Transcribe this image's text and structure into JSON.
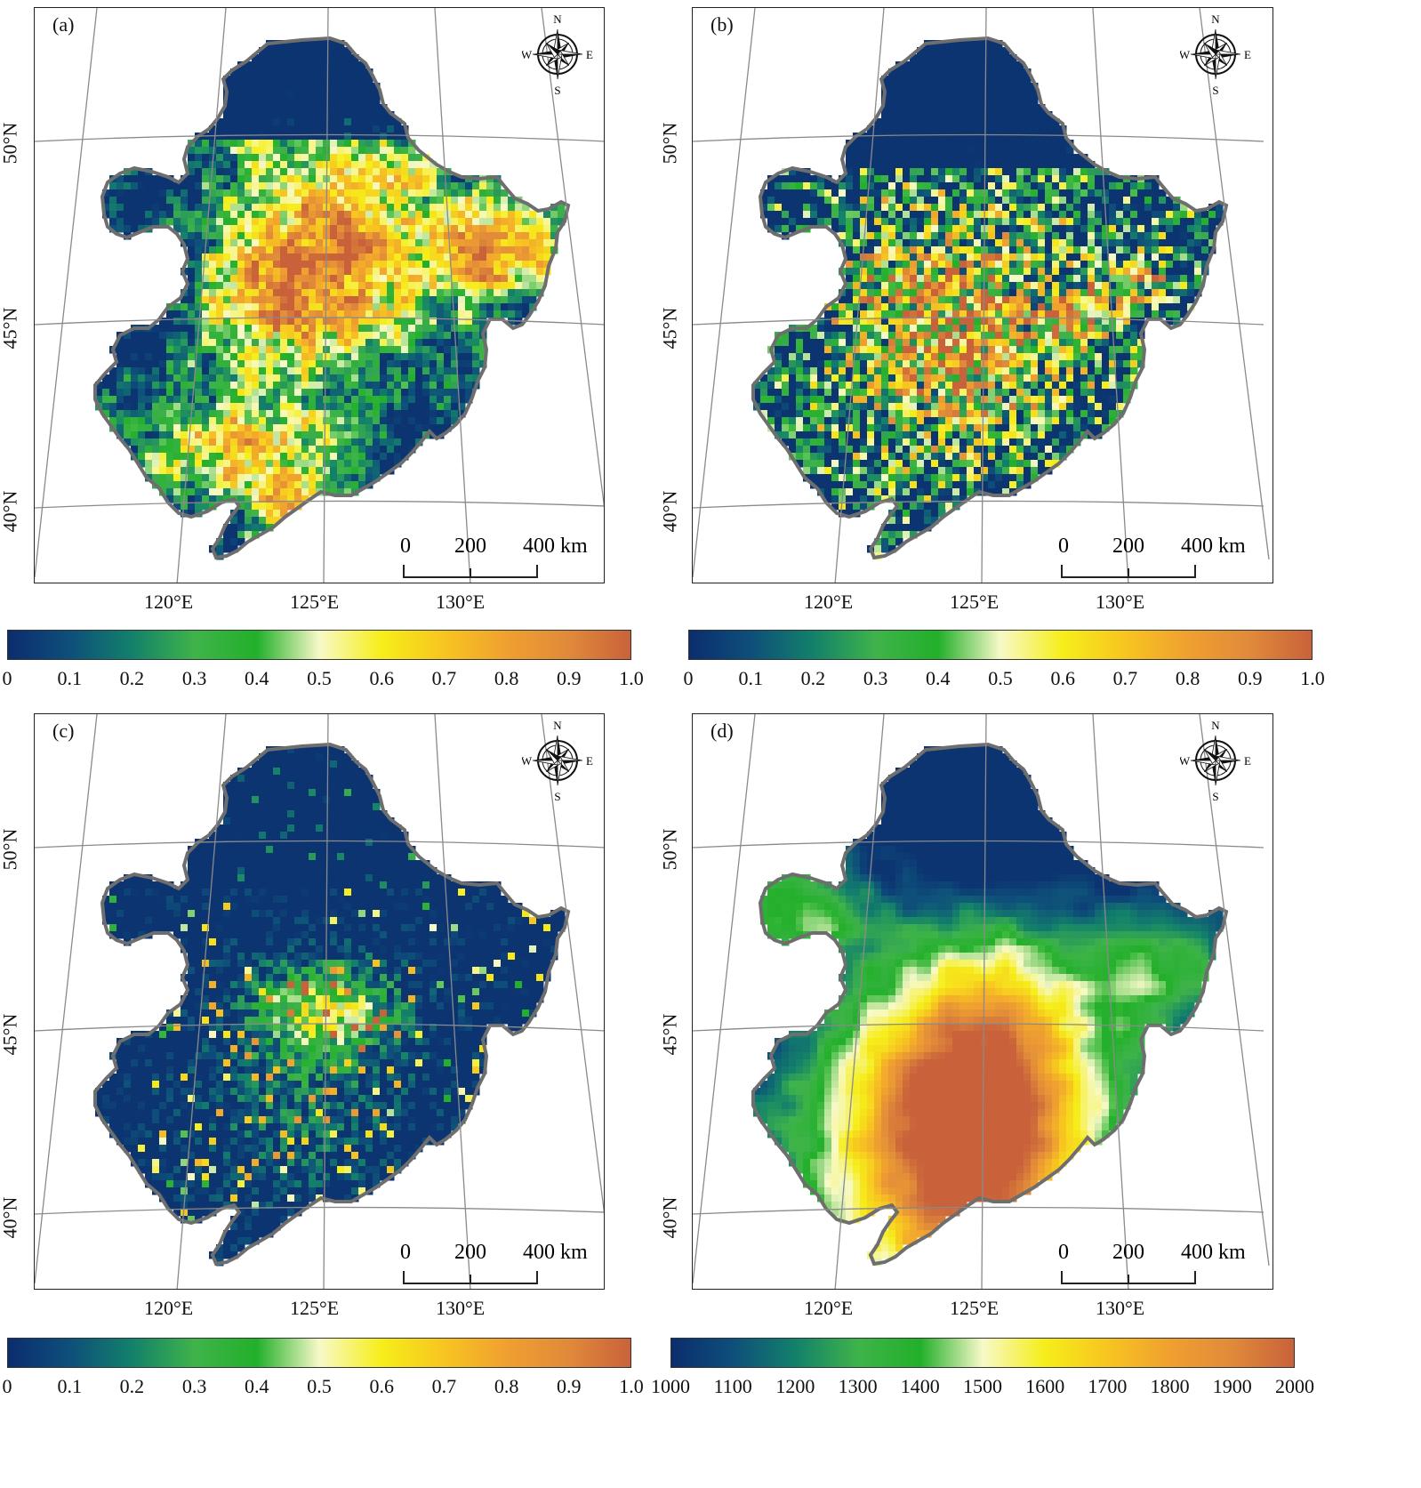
{
  "panels": [
    {
      "id": "a",
      "label": "(a)",
      "colorbar": "prob",
      "pattern": "a"
    },
    {
      "id": "b",
      "label": "(b)",
      "colorbar": "prob",
      "pattern": "b"
    },
    {
      "id": "c",
      "label": "(c)",
      "colorbar": "prob",
      "pattern": "c"
    },
    {
      "id": "d",
      "label": "(d)",
      "colorbar": "elev",
      "pattern": "d"
    }
  ],
  "latitude_labels": [
    "50°N",
    "45°N",
    "40°N"
  ],
  "longitude_labels": [
    "120°E",
    "125°E",
    "130°E"
  ],
  "compass": {
    "n": "N",
    "s": "S",
    "e": "E",
    "w": "W"
  },
  "scalebar": {
    "ticks": [
      "0",
      "200",
      "400 km"
    ]
  },
  "colorbars": {
    "prob": {
      "ticks": [
        "0",
        "0.1",
        "0.2",
        "0.3",
        "0.4",
        "0.5",
        "0.6",
        "0.7",
        "0.8",
        "0.9",
        "1.0"
      ]
    },
    "elev": {
      "ticks": [
        "1000",
        "1100",
        "1200",
        "1300",
        "1400",
        "1500",
        "1600",
        "1700",
        "1800",
        "1900",
        "2000"
      ]
    }
  },
  "colors": {
    "ramp": [
      "#0b2d6e",
      "#0e4f7a",
      "#13816a",
      "#3fb34a",
      "#22b02a",
      "#f7f9c8",
      "#f6ee1a",
      "#f7c520",
      "#f0a030",
      "#e08a3a",
      "#c9623a"
    ],
    "border": "#6e6e6e",
    "grid": "#8a8a8a"
  }
}
